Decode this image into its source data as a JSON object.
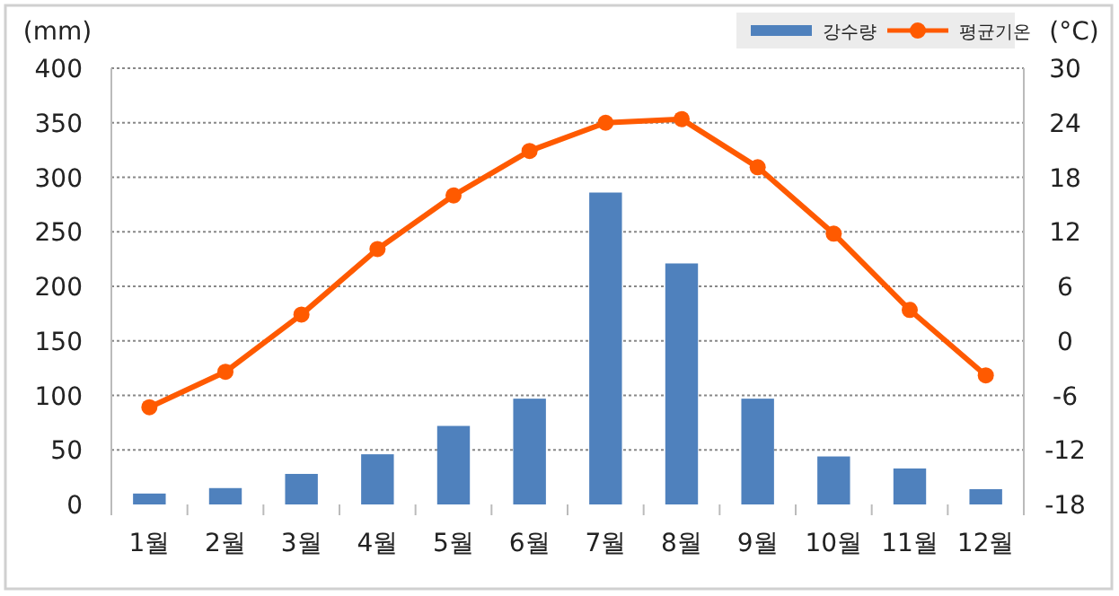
{
  "chart_data": {
    "type": "bar",
    "categories": [
      "1월",
      "2월",
      "3월",
      "4월",
      "5월",
      "6월",
      "7월",
      "8월",
      "9월",
      "10월",
      "11월",
      "12월"
    ],
    "series": [
      {
        "name": "강수량",
        "color": "#4f81bd",
        "values": [
          10,
          15,
          28,
          46,
          72,
          97,
          286,
          221,
          97,
          44,
          33,
          14
        ]
      },
      {
        "name": "평균기온",
        "type": "line",
        "axis": "y2",
        "color": "#ff5a00",
        "marker": "circle",
        "values": [
          -7.3,
          -3.4,
          2.9,
          10.1,
          16,
          20.9,
          24,
          24.4,
          19.1,
          11.8,
          3.4,
          -3.8
        ]
      }
    ],
    "ylabel": "(mm)",
    "y2label": "(°C)",
    "ylim": [
      0,
      400
    ],
    "yticks": [
      0,
      50,
      100,
      150,
      200,
      250,
      300,
      350,
      400
    ],
    "y2lim": [
      -18,
      30
    ],
    "y2ticks": [
      -18,
      -12,
      -6,
      0,
      6,
      12,
      18,
      24,
      30
    ],
    "grid": "y",
    "legend": "top right"
  }
}
